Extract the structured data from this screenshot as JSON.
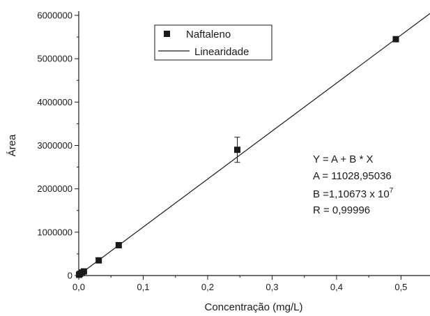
{
  "chart_data": {
    "type": "scatter",
    "xlabel": "Concentração (mg/L)",
    "ylabel": "Área",
    "xlim": [
      0,
      0.545
    ],
    "ylim": [
      0,
      6000000
    ],
    "x_ticks": [
      "0,0",
      "0,1",
      "0,2",
      "0,3",
      "0,4",
      "0,5"
    ],
    "x_tick_values": [
      0,
      0.1,
      0.2,
      0.3,
      0.4,
      0.5
    ],
    "y_ticks": [
      "0",
      "1000000",
      "2000000",
      "3000000",
      "4000000",
      "5000000",
      "6000000"
    ],
    "y_tick_values": [
      0,
      1000000,
      2000000,
      3000000,
      4000000,
      5000000,
      6000000
    ],
    "grid": false,
    "legend_position": "top-center",
    "series": [
      {
        "name": "Naftaleno",
        "kind": "scatter",
        "marker": "square",
        "points": [
          {
            "x": 0.0005,
            "y": 18000
          },
          {
            "x": 0.002,
            "y": 40000
          },
          {
            "x": 0.005,
            "y": 70000
          },
          {
            "x": 0.008,
            "y": 95000
          },
          {
            "x": 0.031,
            "y": 350000
          },
          {
            "x": 0.062,
            "y": 700000
          },
          {
            "x": 0.246,
            "y": 2900000,
            "err": 290000
          },
          {
            "x": 0.492,
            "y": 5450000
          }
        ]
      },
      {
        "name": "Linearidade",
        "kind": "line",
        "intercept": 11028.95036,
        "slope": 11067300,
        "x_range": [
          0,
          0.545
        ]
      }
    ],
    "annotation": {
      "line1": "Y = A + B * X",
      "line2": "A = 11028,95036",
      "line3_prefix": "B =1,10673 x 10",
      "line3_exp": "7",
      "line4": "R = 0,99996"
    },
    "colors": {
      "marker": "#1a1a1a",
      "line": "#1a1a1a",
      "axis": "#1a1a1a"
    }
  }
}
